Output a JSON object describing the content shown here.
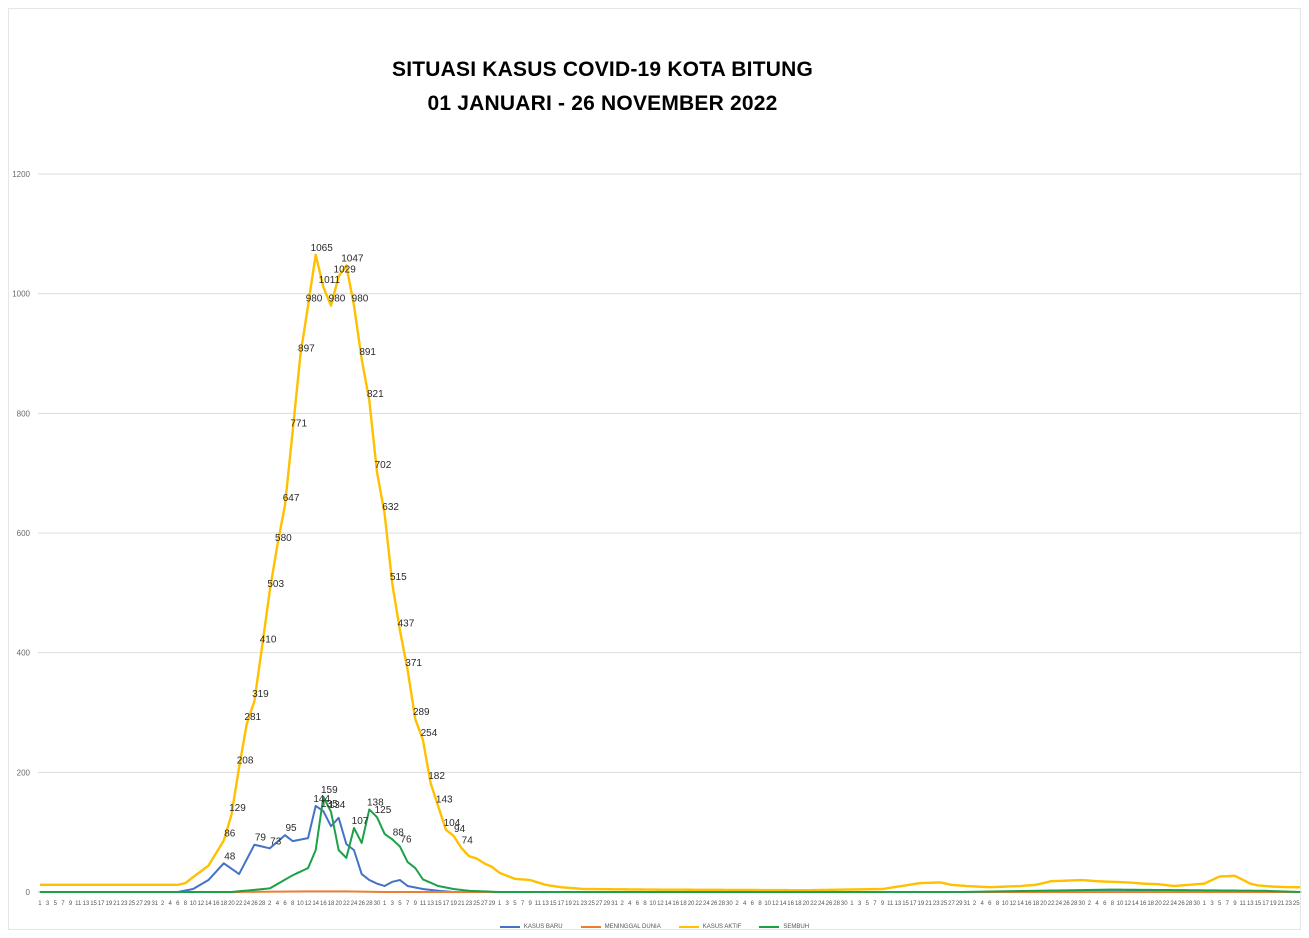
{
  "chart_data": {
    "type": "line",
    "title": "SITUASI KASUS COVID-19 KOTA BITUNG",
    "subtitle": "01 JANUARI - 26 NOVEMBER 2022",
    "ylim": [
      0,
      1200
    ],
    "yticks": [
      0,
      200,
      400,
      600,
      800,
      1000,
      1200
    ],
    "grid": true,
    "legend_position": "bottom",
    "x_count": 330,
    "x_tick_labels": [
      "1",
      "3",
      "5",
      "7",
      "9",
      "11",
      "13",
      "15",
      "17",
      "19",
      "21",
      "23",
      "25",
      "27",
      "29",
      "31",
      "2",
      "4",
      "6",
      "8",
      "10",
      "12",
      "14",
      "16",
      "18",
      "20",
      "22",
      "24",
      "26",
      "28",
      "2",
      "4",
      "6",
      "8",
      "10",
      "12",
      "14",
      "16",
      "18",
      "20",
      "22",
      "24",
      "26",
      "28",
      "30",
      "1",
      "3",
      "5",
      "7",
      "9",
      "11",
      "13",
      "15",
      "17",
      "19",
      "21",
      "23",
      "25",
      "27",
      "29",
      "1",
      "3",
      "5",
      "7",
      "9",
      "11",
      "13",
      "15",
      "17",
      "19",
      "21",
      "23",
      "25",
      "27",
      "29",
      "31",
      "2",
      "4",
      "6",
      "8",
      "10",
      "12",
      "14",
      "16",
      "18",
      "20",
      "22",
      "24",
      "26",
      "28",
      "30",
      "2",
      "4",
      "6",
      "8",
      "10",
      "12",
      "14",
      "16",
      "18",
      "20",
      "22",
      "24",
      "26",
      "28",
      "30",
      "1",
      "3",
      "5",
      "7",
      "9",
      "11",
      "13",
      "15",
      "17",
      "19",
      "21",
      "23",
      "25",
      "27",
      "29",
      "31",
      "2",
      "4",
      "6",
      "8",
      "10",
      "12",
      "14",
      "16",
      "18",
      "20",
      "22",
      "24",
      "26",
      "28",
      "30",
      "2",
      "4",
      "6",
      "8",
      "10",
      "12",
      "14",
      "16",
      "18",
      "20",
      "22",
      "24",
      "26",
      "28",
      "30",
      "1",
      "3",
      "5",
      "7",
      "9",
      "11",
      "13",
      "15",
      "17",
      "19",
      "21",
      "23",
      "25"
    ],
    "series": [
      {
        "name": "KASUS BARU",
        "color": "#4472C4",
        "keypoints": [
          [
            0,
            0
          ],
          [
            36,
            0
          ],
          [
            40,
            5
          ],
          [
            44,
            20
          ],
          [
            48,
            48
          ],
          [
            52,
            30
          ],
          [
            56,
            79
          ],
          [
            60,
            73
          ],
          [
            64,
            95
          ],
          [
            66,
            85
          ],
          [
            70,
            90
          ],
          [
            72,
            144
          ],
          [
            74,
            135
          ],
          [
            76,
            110
          ],
          [
            78,
            124
          ],
          [
            80,
            80
          ],
          [
            82,
            70
          ],
          [
            84,
            30
          ],
          [
            86,
            20
          ],
          [
            88,
            14
          ],
          [
            90,
            10
          ],
          [
            92,
            17
          ],
          [
            94,
            20
          ],
          [
            96,
            10
          ],
          [
            100,
            5
          ],
          [
            104,
            2
          ],
          [
            108,
            0
          ],
          [
            240,
            0
          ],
          [
            300,
            1
          ],
          [
            329,
            0
          ]
        ]
      },
      {
        "name": "MENINGGAL DUNIA",
        "color": "#ED7D31",
        "keypoints": [
          [
            0,
            0
          ],
          [
            50,
            0
          ],
          [
            70,
            1
          ],
          [
            80,
            1
          ],
          [
            90,
            0
          ],
          [
            329,
            0
          ]
        ]
      },
      {
        "name": "KASUS AKTIF",
        "color": "#FFC000",
        "keypoints": [
          [
            0,
            12
          ],
          [
            36,
            12
          ],
          [
            38,
            15
          ],
          [
            40,
            25
          ],
          [
            44,
            44
          ],
          [
            48,
            86
          ],
          [
            50,
            129
          ],
          [
            52,
            208
          ],
          [
            54,
            281
          ],
          [
            56,
            319
          ],
          [
            58,
            410
          ],
          [
            60,
            503
          ],
          [
            62,
            580
          ],
          [
            64,
            647
          ],
          [
            66,
            771
          ],
          [
            68,
            897
          ],
          [
            70,
            980
          ],
          [
            72,
            1065
          ],
          [
            74,
            1011
          ],
          [
            76,
            980
          ],
          [
            78,
            1029
          ],
          [
            80,
            1047
          ],
          [
            82,
            980
          ],
          [
            84,
            891
          ],
          [
            86,
            821
          ],
          [
            88,
            702
          ],
          [
            90,
            632
          ],
          [
            92,
            515
          ],
          [
            94,
            437
          ],
          [
            96,
            371
          ],
          [
            98,
            289
          ],
          [
            100,
            254
          ],
          [
            102,
            182
          ],
          [
            104,
            143
          ],
          [
            106,
            104
          ],
          [
            108,
            94
          ],
          [
            110,
            74
          ],
          [
            112,
            60
          ],
          [
            114,
            56
          ],
          [
            116,
            48
          ],
          [
            118,
            42
          ],
          [
            120,
            32
          ],
          [
            124,
            22
          ],
          [
            128,
            20
          ],
          [
            132,
            12
          ],
          [
            136,
            8
          ],
          [
            142,
            5
          ],
          [
            160,
            4
          ],
          [
            200,
            3
          ],
          [
            220,
            5
          ],
          [
            230,
            15
          ],
          [
            235,
            16
          ],
          [
            238,
            12
          ],
          [
            242,
            10
          ],
          [
            248,
            8
          ],
          [
            252,
            9
          ],
          [
            256,
            10
          ],
          [
            260,
            12
          ],
          [
            264,
            18
          ],
          [
            268,
            19
          ],
          [
            272,
            20
          ],
          [
            276,
            18
          ],
          [
            280,
            17
          ],
          [
            284,
            16
          ],
          [
            288,
            14
          ],
          [
            292,
            13
          ],
          [
            296,
            10
          ],
          [
            300,
            12
          ],
          [
            304,
            14
          ],
          [
            308,
            26
          ],
          [
            312,
            27
          ],
          [
            316,
            14
          ],
          [
            318,
            11
          ],
          [
            322,
            9
          ],
          [
            326,
            8
          ],
          [
            329,
            8
          ]
        ]
      },
      {
        "name": "SEMBUH",
        "color": "#1BA148",
        "keypoints": [
          [
            0,
            0
          ],
          [
            50,
            0
          ],
          [
            60,
            6
          ],
          [
            66,
            28
          ],
          [
            70,
            40
          ],
          [
            72,
            70
          ],
          [
            74,
            159
          ],
          [
            76,
            134
          ],
          [
            78,
            70
          ],
          [
            80,
            57
          ],
          [
            82,
            107
          ],
          [
            84,
            82
          ],
          [
            86,
            138
          ],
          [
            88,
            125
          ],
          [
            90,
            97
          ],
          [
            92,
            88
          ],
          [
            94,
            76
          ],
          [
            96,
            50
          ],
          [
            98,
            40
          ],
          [
            100,
            21
          ],
          [
            104,
            10
          ],
          [
            108,
            5
          ],
          [
            112,
            2
          ],
          [
            120,
            0
          ],
          [
            240,
            0
          ],
          [
            260,
            2
          ],
          [
            280,
            4
          ],
          [
            300,
            3
          ],
          [
            320,
            2
          ],
          [
            329,
            0
          ]
        ]
      }
    ],
    "data_labels": {
      "KASUS AKTIF": [
        [
          72,
          "1065"
        ],
        [
          80,
          "1047"
        ],
        [
          74,
          "1011"
        ],
        [
          78,
          "1029"
        ],
        [
          70,
          "980"
        ],
        [
          76,
          "980"
        ],
        [
          82,
          "980"
        ],
        [
          68,
          "897"
        ],
        [
          84,
          "891"
        ],
        [
          86,
          "821"
        ],
        [
          66,
          "771"
        ],
        [
          88,
          "702"
        ],
        [
          64,
          "647"
        ],
        [
          90,
          "632"
        ],
        [
          62,
          "580"
        ],
        [
          92,
          "515"
        ],
        [
          60,
          "503"
        ],
        [
          94,
          "437"
        ],
        [
          58,
          "410"
        ],
        [
          96,
          "371"
        ],
        [
          56,
          "319"
        ],
        [
          98,
          "289"
        ],
        [
          54,
          "281"
        ],
        [
          100,
          "254"
        ],
        [
          52,
          "208"
        ],
        [
          102,
          "182"
        ],
        [
          104,
          "143"
        ],
        [
          50,
          "129"
        ],
        [
          106,
          "104"
        ],
        [
          108,
          "94"
        ],
        [
          110,
          "74"
        ],
        [
          48,
          "86"
        ]
      ],
      "SEMBUH": [
        [
          74,
          "159"
        ],
        [
          86,
          "138"
        ],
        [
          88,
          "125"
        ],
        [
          82,
          "107"
        ],
        [
          92,
          "88"
        ],
        [
          94,
          "76"
        ],
        [
          76,
          "134"
        ]
      ],
      "KASUS BARU": [
        [
          72,
          "144"
        ],
        [
          74,
          "135"
        ],
        [
          64,
          "95"
        ],
        [
          56,
          "79"
        ],
        [
          60,
          "73"
        ],
        [
          48,
          "48"
        ]
      ]
    }
  },
  "legend": {
    "items": [
      {
        "label": "KASUS BARU",
        "color": "#4472C4"
      },
      {
        "label": "MENINGGAL DUNIA",
        "color": "#ED7D31"
      },
      {
        "label": "KASUS AKTIF",
        "color": "#FFC000"
      },
      {
        "label": "SEMBUH",
        "color": "#1BA148"
      }
    ]
  }
}
